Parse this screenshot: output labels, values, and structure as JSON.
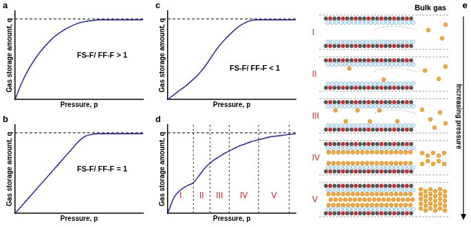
{
  "chart_data": [
    {
      "type": "line",
      "title": "a",
      "x_label": "Pressure, p",
      "y_label": "Gas storage amount, q",
      "x": [
        0,
        0.5,
        1,
        1.5,
        2,
        2.5,
        3,
        3.5,
        4,
        4.5,
        5,
        5.5,
        6,
        6.5,
        7,
        7.5,
        8,
        8.5,
        9,
        9.5,
        10
      ],
      "series": [
        {
          "color": "#2a2fa3",
          "values": [
            0,
            0.2,
            0.36,
            0.49,
            0.6,
            0.69,
            0.77,
            0.83,
            0.88,
            0.92,
            0.95,
            0.97,
            0.98,
            0.99,
            0.99,
            0.99,
            0.99,
            0.99,
            0.99,
            0.99,
            0.99
          ]
        },
        {
          "color": "#000000",
          "line_style": "dashed",
          "values": [
            1,
            1,
            1,
            1,
            1,
            1,
            1,
            1,
            1,
            1,
            1,
            1,
            1,
            1,
            1,
            1,
            1,
            1,
            1,
            1,
            1
          ]
        }
      ],
      "xlim": [
        0,
        10
      ],
      "ylim": [
        0,
        1.1
      ],
      "tick_labels": false,
      "grid": false,
      "annotations": [
        "FS-F/ FF-F > 1"
      ]
    },
    {
      "type": "line",
      "title": "b",
      "x_label": "Pressure, p",
      "y_label": "Gas storage amount, q",
      "x": [
        0,
        0.5,
        1,
        1.5,
        2,
        2.5,
        3,
        3.5,
        4,
        4.5,
        5,
        5.5,
        6,
        6.5,
        7,
        7.5,
        8,
        8.5,
        9,
        9.5,
        10
      ],
      "series": [
        {
          "color": "#2a2fa3",
          "values": [
            0,
            0.09,
            0.18,
            0.27,
            0.36,
            0.45,
            0.54,
            0.63,
            0.72,
            0.81,
            0.9,
            0.96,
            0.98,
            0.99,
            0.99,
            0.99,
            0.99,
            0.99,
            0.99,
            0.99,
            0.99
          ]
        },
        {
          "color": "#000000",
          "line_style": "dashed",
          "values": [
            1,
            1,
            1,
            1,
            1,
            1,
            1,
            1,
            1,
            1,
            1,
            1,
            1,
            1,
            1,
            1,
            1,
            1,
            1,
            1,
            1
          ]
        }
      ],
      "xlim": [
        0,
        10
      ],
      "ylim": [
        0,
        1.1
      ],
      "tick_labels": false,
      "grid": false,
      "annotations": [
        "FS-F/ FF-F = 1"
      ]
    },
    {
      "type": "line",
      "title": "c",
      "x_label": "Pressure, p",
      "y_label": "Gas storage amount, q",
      "x": [
        0,
        0.5,
        1,
        1.5,
        2,
        2.5,
        3,
        3.5,
        4,
        4.5,
        5,
        5.5,
        6,
        6.5,
        7,
        7.5,
        8,
        8.5,
        9,
        9.5,
        10
      ],
      "series": [
        {
          "color": "#2a2fa3",
          "values": [
            0,
            0.06,
            0.12,
            0.18,
            0.25,
            0.33,
            0.43,
            0.55,
            0.66,
            0.75,
            0.83,
            0.9,
            0.95,
            0.98,
            0.99,
            0.99,
            0.99,
            0.99,
            0.99,
            0.99,
            0.99
          ]
        },
        {
          "color": "#000000",
          "line_style": "dashed",
          "values": [
            1,
            1,
            1,
            1,
            1,
            1,
            1,
            1,
            1,
            1,
            1,
            1,
            1,
            1,
            1,
            1,
            1,
            1,
            1,
            1,
            1
          ]
        }
      ],
      "xlim": [
        0,
        10
      ],
      "ylim": [
        0,
        1.1
      ],
      "tick_labels": false,
      "grid": false,
      "annotations": [
        "FS-F/ FF-F < 1"
      ]
    },
    {
      "type": "line",
      "title": "d",
      "x_label": "Pressure, p",
      "y_label": "Gas storage amount, q",
      "x": [
        0,
        0.5,
        1,
        1.5,
        2,
        2.5,
        3,
        3.5,
        4,
        4.5,
        5,
        5.5,
        6,
        6.5,
        7,
        7.5,
        8,
        8.5,
        9,
        9.5,
        10
      ],
      "series": [
        {
          "color": "#2a2fa3",
          "values": [
            0,
            0.2,
            0.29,
            0.34,
            0.38,
            0.48,
            0.58,
            0.65,
            0.7,
            0.75,
            0.79,
            0.83,
            0.86,
            0.89,
            0.91,
            0.93,
            0.95,
            0.96,
            0.97,
            0.98,
            0.99
          ]
        },
        {
          "color": "#000000",
          "line_style": "dashed",
          "values": [
            1,
            1,
            1,
            1,
            1,
            1,
            1,
            1,
            1,
            1,
            1,
            1,
            1,
            1,
            1,
            1,
            1,
            1,
            1,
            1,
            1
          ]
        }
      ],
      "xlim": [
        0,
        10
      ],
      "ylim": [
        0,
        1.1
      ],
      "tick_labels": false,
      "grid": false,
      "region_boundaries": [
        2,
        3.3,
        4.8,
        7.1,
        9.5
      ],
      "region_labels": [
        "I",
        "II",
        "III",
        "IV",
        "V"
      ]
    }
  ],
  "diagram": {
    "panel_label": "e",
    "header": "Bulk gas",
    "stages": [
      "I",
      "II",
      "III",
      "IV",
      "V"
    ],
    "arrow_label": "Increasing pressure"
  }
}
